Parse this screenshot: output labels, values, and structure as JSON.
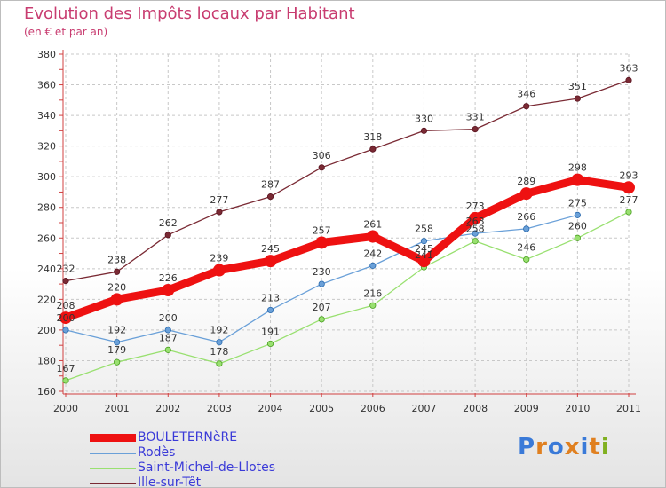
{
  "title": "Evolution des Impôts locaux par Habitant",
  "subtitle": "(en € et par an)",
  "logo_text": "Proxiti",
  "chart_data": {
    "type": "line",
    "x": [
      "2000",
      "2001",
      "2002",
      "2003",
      "2004",
      "2005",
      "2006",
      "2007",
      "2008",
      "2009",
      "2010",
      "2011"
    ],
    "ylim": [
      160,
      380
    ],
    "yticks": [
      160,
      180,
      200,
      220,
      240,
      260,
      280,
      300,
      320,
      340,
      360,
      380
    ],
    "grid": true,
    "legend": "bottom-left",
    "series": [
      {
        "name": "Ille-sur-Têt",
        "color": "#7a2a34",
        "values": [
          232,
          238,
          262,
          277,
          287,
          306,
          318,
          330,
          331,
          346,
          351,
          363
        ]
      },
      {
        "name": "Saint-Michel-de-Llotes",
        "color": "#99e070",
        "values": [
          167,
          179,
          187,
          178,
          191,
          207,
          216,
          241,
          258,
          246,
          260,
          277
        ]
      },
      {
        "name": "Rodès",
        "color": "#6aa0d8",
        "values": [
          200,
          192,
          200,
          192,
          213,
          230,
          242,
          258,
          263,
          266,
          275,
          null
        ]
      },
      {
        "name": "BOULETERNèRE",
        "color": "#ee1111",
        "values": [
          208,
          220,
          226,
          239,
          245,
          257,
          261,
          245,
          273,
          289,
          298,
          293
        ]
      }
    ]
  }
}
